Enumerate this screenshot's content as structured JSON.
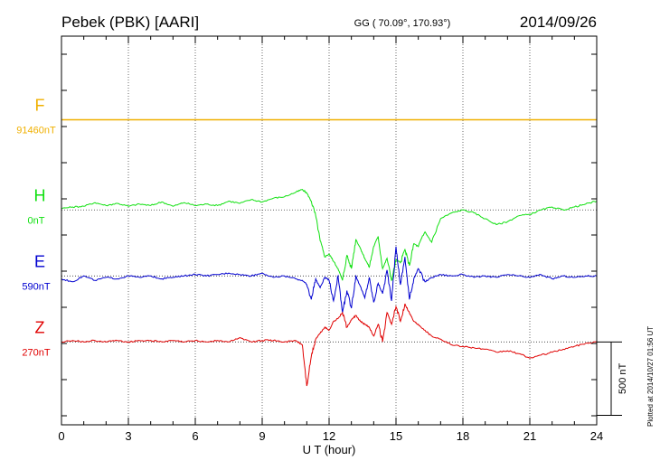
{
  "header": {
    "station": "Pebek (PBK)  [AARI]",
    "coords": "GG ( 70.09°, 170.93°)",
    "date": "2014/09/26"
  },
  "footer": {
    "plotted": "Plotted at 2014/10/27 01:56 UT"
  },
  "colors": {
    "F": "#f0b000",
    "H": "#10e010",
    "E": "#0000d0",
    "Z": "#e00000",
    "axis": "#000000"
  },
  "chart_data": {
    "type": "line",
    "xlabel": "U T (hour)",
    "xlim": [
      0,
      24
    ],
    "xticks": [
      0,
      3,
      6,
      9,
      12,
      15,
      18,
      21,
      24
    ],
    "x_tick_labels": [
      "0",
      "3",
      "6",
      "9",
      "12",
      "15",
      "18",
      "21",
      "24"
    ],
    "grid": true,
    "scale_bar": {
      "label": "500 nT",
      "value_nT": 500
    },
    "ylim_nT": [
      -2080,
      570
    ],
    "series": [
      {
        "name": "F",
        "baseline_label": "91460nT",
        "offset_nT": 0,
        "x": [
          0,
          24
        ],
        "values": [
          0,
          0
        ]
      },
      {
        "name": "H",
        "baseline_label": "0nT",
        "offset_nT": -615,
        "x": [
          0,
          0.5,
          1,
          1.5,
          2,
          2.5,
          3,
          3.5,
          4,
          4.5,
          5,
          5.5,
          6,
          6.5,
          7,
          7.5,
          8,
          8.5,
          9,
          9.5,
          10,
          10.5,
          10.8,
          11,
          11.2,
          11.4,
          11.6,
          11.8,
          12,
          12.2,
          12.4,
          12.6,
          12.8,
          13,
          13.2,
          13.4,
          13.6,
          13.8,
          14,
          14.2,
          14.4,
          14.6,
          14.8,
          15,
          15.2,
          15.4,
          15.6,
          15.8,
          16,
          16.3,
          16.6,
          17,
          17.5,
          18,
          18.5,
          19,
          19.5,
          20,
          20.5,
          21,
          21.5,
          22,
          22.5,
          23,
          23.5,
          24
        ],
        "values": [
          10,
          20,
          25,
          50,
          30,
          45,
          25,
          40,
          30,
          55,
          25,
          50,
          30,
          40,
          30,
          60,
          45,
          70,
          55,
          80,
          90,
          120,
          140,
          115,
          60,
          -40,
          -210,
          -320,
          -300,
          -350,
          -400,
          -480,
          -310,
          -400,
          -200,
          -260,
          -330,
          -390,
          -250,
          -180,
          -400,
          -330,
          -480,
          -340,
          -360,
          -270,
          -380,
          -230,
          -250,
          -150,
          -220,
          -60,
          -20,
          0,
          -20,
          -60,
          -100,
          -80,
          -40,
          -30,
          0,
          20,
          0,
          20,
          40,
          60
        ]
      },
      {
        "name": "E",
        "baseline_label": "590nT",
        "offset_nT": -1065,
        "x": [
          0,
          0.5,
          1,
          1.5,
          2,
          2.5,
          3,
          3.5,
          4,
          4.5,
          5,
          5.5,
          6,
          6.5,
          7,
          7.5,
          8,
          8.5,
          9,
          9.5,
          10,
          10.5,
          10.8,
          11,
          11.2,
          11.4,
          11.6,
          11.8,
          12,
          12.2,
          12.4,
          12.6,
          12.8,
          13,
          13.2,
          13.4,
          13.6,
          13.8,
          14,
          14.2,
          14.4,
          14.6,
          14.8,
          15,
          15.2,
          15.4,
          15.6,
          15.8,
          16,
          16.3,
          16.6,
          17,
          17.5,
          18,
          18.5,
          19,
          19.5,
          20,
          20.5,
          21,
          21.5,
          22,
          22.5,
          23,
          23.5,
          24
        ],
        "values": [
          -20,
          -40,
          0,
          -30,
          -10,
          -20,
          0,
          -10,
          0,
          -20,
          -10,
          0,
          10,
          0,
          10,
          20,
          10,
          0,
          20,
          -10,
          0,
          -20,
          -30,
          -60,
          -160,
          -20,
          -80,
          -10,
          -30,
          -170,
          0,
          -250,
          -100,
          -220,
          0,
          -70,
          -150,
          -10,
          -180,
          -50,
          -120,
          40,
          -170,
          200,
          -60,
          130,
          -160,
          -20,
          50,
          -40,
          -10,
          10,
          0,
          10,
          -10,
          0,
          -10,
          10,
          0,
          -10,
          10,
          -20,
          0,
          -10,
          0,
          0
        ]
      },
      {
        "name": "Z",
        "baseline_label": "270nT",
        "offset_nT": -1515,
        "x": [
          0,
          0.5,
          1,
          1.5,
          2,
          2.5,
          3,
          3.5,
          4,
          4.5,
          5,
          5.5,
          6,
          6.5,
          7,
          7.5,
          8,
          8.5,
          9,
          9.5,
          10,
          10.5,
          10.8,
          11,
          11.2,
          11.4,
          11.6,
          11.8,
          12,
          12.2,
          12.4,
          12.6,
          12.8,
          13,
          13.2,
          13.4,
          13.6,
          13.8,
          14,
          14.2,
          14.4,
          14.6,
          14.8,
          15,
          15.2,
          15.4,
          15.6,
          15.8,
          16,
          16.3,
          16.6,
          17,
          17.5,
          18,
          18.5,
          19,
          19.5,
          20,
          20.5,
          21,
          21.5,
          22,
          22.5,
          23,
          23.5,
          24
        ],
        "values": [
          0,
          10,
          0,
          10,
          0,
          10,
          0,
          10,
          10,
          0,
          10,
          0,
          10,
          0,
          10,
          0,
          30,
          0,
          10,
          10,
          0,
          10,
          -20,
          -300,
          -100,
          20,
          60,
          100,
          80,
          140,
          160,
          200,
          100,
          150,
          180,
          140,
          120,
          100,
          40,
          120,
          0,
          200,
          120,
          240,
          140,
          260,
          200,
          140,
          120,
          80,
          40,
          20,
          -20,
          -30,
          -40,
          -50,
          -70,
          -60,
          -80,
          -110,
          -90,
          -70,
          -50,
          -30,
          -10,
          0
        ]
      }
    ]
  }
}
